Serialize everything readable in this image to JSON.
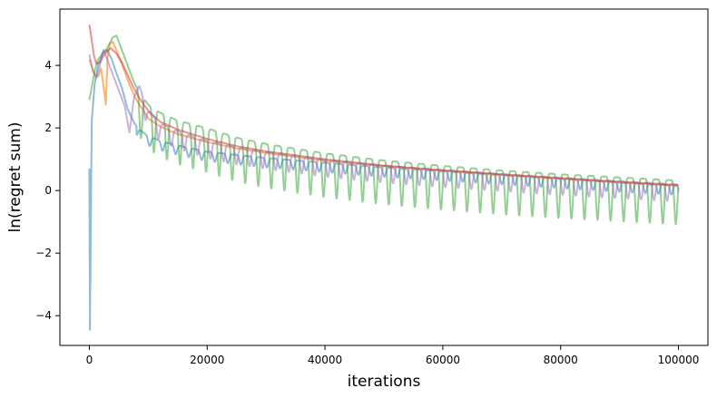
{
  "chart_data": {
    "type": "line",
    "title": "",
    "xlabel": "iterations",
    "ylabel": "ln(regret sum)",
    "xlim": [
      -5000,
      105000
    ],
    "ylim": [
      -4.95,
      5.8
    ],
    "x_ticks": [
      0,
      20000,
      40000,
      60000,
      80000,
      100000
    ],
    "x_tick_labels": [
      "0",
      "20000",
      "40000",
      "60000",
      "80000",
      "100000"
    ],
    "y_ticks": [
      -4,
      -2,
      0,
      2,
      4
    ],
    "y_tick_labels": [
      "−4",
      "−2",
      "0",
      "2",
      "4"
    ],
    "grid": false,
    "legend": "none",
    "series": [
      {
        "color": "#1f77b4",
        "opacity": 0.5,
        "style": "dips",
        "points": [
          [
            0,
            0.7
          ],
          [
            100,
            -4.45
          ],
          [
            400,
            2.2
          ],
          [
            900,
            3.4
          ],
          [
            1500,
            4.0
          ],
          [
            2200,
            4.4
          ],
          [
            3000,
            4.5
          ],
          [
            3800,
            4.2
          ],
          [
            4500,
            3.8
          ],
          [
            5500,
            3.3
          ],
          [
            6500,
            2.6
          ],
          [
            7500,
            2.2
          ],
          [
            8500,
            1.9
          ],
          [
            10000,
            1.7
          ],
          [
            12000,
            1.55
          ],
          [
            15000,
            1.4
          ],
          [
            20000,
            1.2
          ],
          [
            30000,
            1.0
          ],
          [
            40000,
            0.85
          ],
          [
            50000,
            0.7
          ],
          [
            60000,
            0.58
          ],
          [
            70000,
            0.46
          ],
          [
            80000,
            0.34
          ],
          [
            90000,
            0.22
          ],
          [
            100000,
            0.12
          ]
        ],
        "dip_depth": 0.3
      },
      {
        "color": "#ff7f0e",
        "opacity": 0.6,
        "style": "smooth",
        "points": [
          [
            0,
            4.2
          ],
          [
            500,
            3.9
          ],
          [
            1000,
            3.7
          ],
          [
            1500,
            3.65
          ],
          [
            2000,
            3.9
          ],
          [
            2500,
            3.2
          ],
          [
            2800,
            2.75
          ],
          [
            3100,
            4.3
          ],
          [
            3500,
            4.7
          ],
          [
            4000,
            4.75
          ],
          [
            5000,
            4.3
          ],
          [
            6000,
            3.8
          ],
          [
            7000,
            3.3
          ],
          [
            8000,
            2.9
          ],
          [
            9000,
            2.6
          ],
          [
            10000,
            2.3
          ],
          [
            12000,
            2.05
          ],
          [
            15000,
            1.8
          ],
          [
            20000,
            1.55
          ],
          [
            25000,
            1.35
          ],
          [
            30000,
            1.2
          ],
          [
            40000,
            0.95
          ],
          [
            50000,
            0.78
          ],
          [
            60000,
            0.63
          ],
          [
            70000,
            0.5
          ],
          [
            80000,
            0.38
          ],
          [
            90000,
            0.26
          ],
          [
            100000,
            0.15
          ]
        ]
      },
      {
        "color": "#2ca02c",
        "opacity": 0.5,
        "style": "dips",
        "points": [
          [
            0,
            2.9
          ],
          [
            500,
            3.4
          ],
          [
            1000,
            3.9
          ],
          [
            1500,
            4.2
          ],
          [
            2000,
            4.3
          ],
          [
            3000,
            4.55
          ],
          [
            4000,
            4.9
          ],
          [
            4600,
            4.95
          ],
          [
            5500,
            4.5
          ],
          [
            6500,
            4.0
          ],
          [
            7500,
            3.5
          ],
          [
            8500,
            3.1
          ],
          [
            10000,
            2.7
          ],
          [
            12000,
            2.45
          ],
          [
            15000,
            2.2
          ],
          [
            20000,
            1.95
          ],
          [
            25000,
            1.65
          ],
          [
            30000,
            1.45
          ],
          [
            40000,
            1.15
          ],
          [
            50000,
            0.92
          ],
          [
            60000,
            0.75
          ],
          [
            70000,
            0.6
          ],
          [
            80000,
            0.48
          ],
          [
            90000,
            0.38
          ],
          [
            100000,
            0.28
          ]
        ],
        "dip_depth": 1.4
      },
      {
        "color": "#d62728",
        "opacity": 0.5,
        "style": "smooth",
        "points": [
          [
            0,
            5.3
          ],
          [
            400,
            4.8
          ],
          [
            800,
            4.3
          ],
          [
            1200,
            4.05
          ],
          [
            1800,
            4.1
          ],
          [
            2400,
            4.3
          ],
          [
            3000,
            4.45
          ],
          [
            3600,
            4.55
          ],
          [
            4500,
            4.4
          ],
          [
            5500,
            4.1
          ],
          [
            6500,
            3.7
          ],
          [
            7500,
            3.3
          ],
          [
            8500,
            2.95
          ],
          [
            10000,
            2.55
          ],
          [
            12000,
            2.2
          ],
          [
            15000,
            1.95
          ],
          [
            20000,
            1.65
          ],
          [
            25000,
            1.42
          ],
          [
            30000,
            1.25
          ],
          [
            40000,
            1.0
          ],
          [
            50000,
            0.8
          ],
          [
            60000,
            0.65
          ],
          [
            70000,
            0.52
          ],
          [
            80000,
            0.4
          ],
          [
            90000,
            0.28
          ],
          [
            100000,
            0.18
          ]
        ]
      },
      {
        "color": "#9467bd",
        "opacity": 0.5,
        "style": "dips",
        "points": [
          [
            0,
            4.35
          ],
          [
            600,
            3.8
          ],
          [
            1200,
            3.6
          ],
          [
            1800,
            4.0
          ],
          [
            2400,
            4.5
          ],
          [
            3000,
            4.2
          ],
          [
            3600,
            3.9
          ],
          [
            4200,
            3.6
          ],
          [
            5000,
            3.2
          ],
          [
            6000,
            2.7
          ],
          [
            6800,
            1.85
          ],
          [
            7600,
            3.0
          ],
          [
            8500,
            3.3
          ],
          [
            10000,
            2.5
          ],
          [
            12000,
            2.1
          ],
          [
            15000,
            1.85
          ],
          [
            20000,
            1.55
          ],
          [
            25000,
            1.35
          ],
          [
            30000,
            1.2
          ],
          [
            40000,
            0.95
          ],
          [
            50000,
            0.76
          ],
          [
            60000,
            0.62
          ],
          [
            70000,
            0.49
          ],
          [
            80000,
            0.37
          ],
          [
            90000,
            0.26
          ],
          [
            100000,
            0.16
          ]
        ],
        "dip_depth": 0.55
      }
    ]
  }
}
